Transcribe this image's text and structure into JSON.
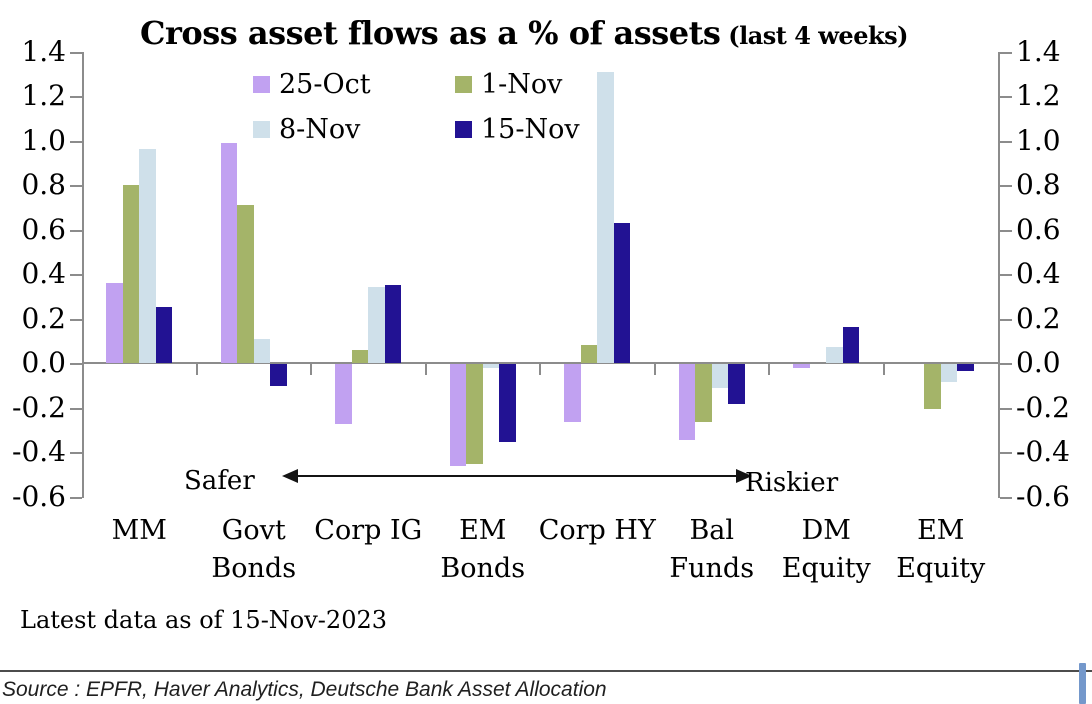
{
  "title": {
    "main": "Cross asset flows as a % of assets",
    "suffix": " (last 4 weeks)"
  },
  "chart_data": {
    "type": "bar",
    "categories": [
      "MM",
      "Govt Bonds",
      "Corp IG",
      "EM Bonds",
      "Corp HY",
      "Bal Funds",
      "DM Equity",
      "EM Equity"
    ],
    "category_label_lines": [
      [
        "MM"
      ],
      [
        "Govt",
        "Bonds"
      ],
      [
        "Corp IG"
      ],
      [
        "EM",
        "Bonds"
      ],
      [
        "Corp HY"
      ],
      [
        "Bal",
        "Funds"
      ],
      [
        "DM",
        "Equity"
      ],
      [
        "EM",
        "Equity"
      ]
    ],
    "series": [
      {
        "name": "25-Oct",
        "color": "#c1a1f1",
        "values": [
          0.36,
          0.99,
          -0.27,
          -0.46,
          -0.26,
          -0.34,
          -0.02,
          0.0
        ]
      },
      {
        "name": "1-Nov",
        "color": "#a4b469",
        "values": [
          0.8,
          0.71,
          0.06,
          -0.45,
          0.08,
          -0.26,
          0.0,
          -0.2
        ]
      },
      {
        "name": "8-Nov",
        "color": "#cfe0ea",
        "values": [
          0.96,
          0.11,
          0.34,
          -0.02,
          1.31,
          -0.11,
          0.07,
          -0.08
        ]
      },
      {
        "name": "15-Nov",
        "color": "#221293",
        "values": [
          0.25,
          -0.1,
          0.35,
          -0.35,
          0.63,
          -0.18,
          0.16,
          -0.03
        ]
      }
    ],
    "ylim": [
      -0.6,
      1.4
    ],
    "ytick_step": 0.2,
    "ytick_labels": [
      "1.4",
      "1.2",
      "1.0",
      "0.8",
      "0.6",
      "0.4",
      "0.2",
      "0.0",
      "-0.2",
      "-0.4",
      "-0.6"
    ],
    "dual_y_axis": true,
    "grid": "zero-line-only",
    "legend_position": "top-inside"
  },
  "annotations": {
    "left_label": "Safer",
    "right_label": "Riskier"
  },
  "footer": {
    "latest": "Latest data as of 15-Nov-2023",
    "source": "Source : EPFR, Haver Analytics, Deutsche Bank Asset Allocation"
  },
  "colors": {
    "axis": "#8c8c8c",
    "arrow": "#141414",
    "scroll_accent": "#7498cb"
  }
}
